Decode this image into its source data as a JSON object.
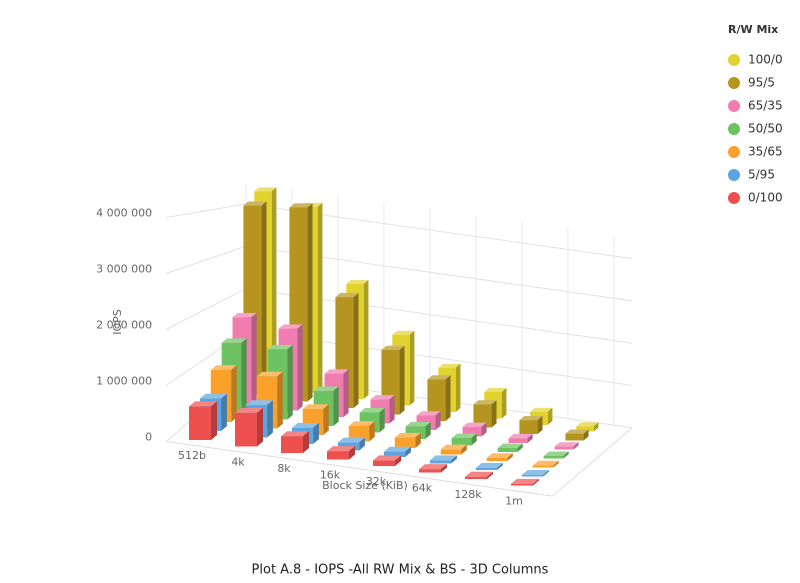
{
  "chart_data": {
    "type": "bar3d",
    "title": "Plot A.8 - IOPS -All RW Mix & BS - 3D Columns",
    "x_label": "Block Size (KiB)",
    "y_label": "IOPS",
    "legend_title": "R/W Mix",
    "legend": "top-right",
    "grid": true,
    "categories": [
      "512b",
      "4k",
      "8k",
      "16k",
      "32k",
      "64k",
      "128k",
      "1m"
    ],
    "ylim": [
      0,
      4500000
    ],
    "yticks": [
      {
        "value": 0,
        "label": "0"
      },
      {
        "value": 1000000,
        "label": "1 000 000"
      },
      {
        "value": 2000000,
        "label": "2 000 000"
      },
      {
        "value": 3000000,
        "label": "3 000 000"
      },
      {
        "value": 4000000,
        "label": "4 000 000"
      }
    ],
    "series": [
      {
        "name": "100/0",
        "color": "#e2d230",
        "values": [
          4400000,
          4200000,
          2600000,
          1600000,
          1000000,
          600000,
          300000,
          120000
        ]
      },
      {
        "name": "95/5",
        "color": "#b5951f",
        "values": [
          4100000,
          4200000,
          2400000,
          1400000,
          900000,
          500000,
          300000,
          150000
        ]
      },
      {
        "name": "65/35",
        "color": "#f17cb0",
        "values": [
          1800000,
          1700000,
          900000,
          500000,
          300000,
          200000,
          100000,
          60000
        ]
      },
      {
        "name": "50/50",
        "color": "#6dc262",
        "values": [
          1400000,
          1400000,
          700000,
          400000,
          250000,
          150000,
          80000,
          50000
        ]
      },
      {
        "name": "35/65",
        "color": "#f9a12b",
        "values": [
          1000000,
          1000000,
          500000,
          300000,
          200000,
          100000,
          60000,
          40000
        ]
      },
      {
        "name": "5/95",
        "color": "#5ca5e0",
        "values": [
          600000,
          600000,
          300000,
          150000,
          100000,
          60000,
          40000,
          30000
        ]
      },
      {
        "name": "0/100",
        "color": "#ee5050",
        "values": [
          600000,
          600000,
          300000,
          150000,
          100000,
          60000,
          40000,
          30000
        ]
      }
    ]
  }
}
